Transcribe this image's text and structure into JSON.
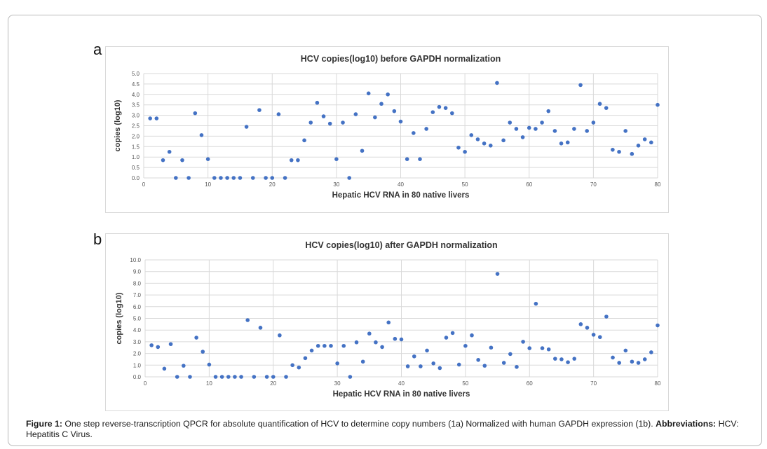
{
  "panels": [
    {
      "letter": "a"
    },
    {
      "letter": "b"
    }
  ],
  "caption": {
    "label": "Figure 1:",
    "text": " One step reverse-transcription QPCR for absolute quantification of HCV to determine copy numbers (1a) Normalized with human GAPDH expression (1b). ",
    "abbr_label": "Abbreviations:",
    "abbr_text": " HCV: Hepatitis C Virus."
  },
  "chart_data": [
    {
      "type": "scatter",
      "title": "HCV copies(log10) before GAPDH normalization",
      "xlabel": "Hepatic HCV  RNA in 80 native livers",
      "ylabel": "copies (log10)",
      "xlim": [
        0,
        80
      ],
      "ylim": [
        0,
        5
      ],
      "xticks": [
        0,
        10,
        20,
        30,
        40,
        50,
        60,
        70,
        80
      ],
      "yticks": [
        "0.0",
        "0.5",
        "1.0",
        "1.5",
        "2.0",
        "2.5",
        "3.0",
        "3.5",
        "4.0",
        "4.5",
        "5.0"
      ],
      "grid": "horizontal",
      "marker_color": "#4472c4",
      "x": [
        1,
        2,
        3,
        4,
        5,
        6,
        7,
        8,
        9,
        10,
        11,
        12,
        13,
        14,
        15,
        16,
        17,
        18,
        19,
        20,
        21,
        22,
        23,
        24,
        25,
        26,
        27,
        28,
        29,
        30,
        31,
        32,
        33,
        34,
        35,
        36,
        37,
        38,
        39,
        40,
        41,
        42,
        43,
        44,
        45,
        46,
        47,
        48,
        49,
        50,
        51,
        52,
        53,
        54,
        55,
        56,
        57,
        58,
        59,
        60,
        61,
        62,
        63,
        64,
        65,
        66,
        67,
        68,
        69,
        70,
        71,
        72,
        73,
        74,
        75,
        76,
        77,
        78,
        79,
        80
      ],
      "y": [
        2.85,
        2.85,
        0.85,
        1.25,
        0,
        0.85,
        0,
        3.1,
        2.05,
        0.9,
        0,
        0,
        0,
        0,
        0,
        2.45,
        0,
        3.25,
        0,
        0,
        3.05,
        0,
        0.85,
        0.85,
        1.8,
        2.65,
        3.6,
        2.95,
        2.6,
        0.9,
        2.65,
        0,
        3.05,
        1.3,
        4.05,
        2.9,
        3.55,
        4.0,
        3.2,
        2.7,
        0.9,
        2.15,
        0.9,
        2.35,
        3.15,
        3.4,
        3.35,
        3.1,
        1.45,
        1.25,
        2.05,
        1.85,
        1.65,
        1.55,
        4.55,
        1.8,
        2.65,
        2.35,
        1.95,
        2.4,
        2.35,
        2.65,
        3.2,
        2.25,
        1.65,
        1.7,
        2.35,
        4.45,
        2.25,
        2.65,
        3.55,
        3.35,
        1.35,
        1.25,
        2.25,
        1.15,
        1.55,
        1.85,
        1.7,
        3.5
      ]
    },
    {
      "type": "scatter",
      "title": "HCV copies(log10) after GAPDH normalization",
      "xlabel": "Hepatic HCV  RNA in 80 native livers",
      "ylabel": "copies (log10)",
      "xlim": [
        0,
        80
      ],
      "ylim": [
        0,
        10
      ],
      "xticks": [
        0,
        10,
        20,
        30,
        40,
        50,
        60,
        70,
        80
      ],
      "yticks": [
        "0.0",
        "1.0",
        "2.0",
        "3.0",
        "4.0",
        "5.0",
        "6.0",
        "7.0",
        "8.0",
        "9.0",
        "10.0"
      ],
      "grid": "horizontal",
      "marker_color": "#4472c4",
      "x": [
        1,
        2,
        3,
        4,
        5,
        6,
        7,
        8,
        9,
        10,
        11,
        12,
        13,
        14,
        15,
        16,
        17,
        18,
        19,
        20,
        21,
        22,
        23,
        24,
        25,
        26,
        27,
        28,
        29,
        30,
        31,
        32,
        33,
        34,
        35,
        36,
        37,
        38,
        39,
        40,
        41,
        42,
        43,
        44,
        45,
        46,
        47,
        48,
        49,
        50,
        51,
        52,
        53,
        54,
        55,
        56,
        57,
        58,
        59,
        60,
        61,
        62,
        63,
        64,
        65,
        66,
        67,
        68,
        69,
        70,
        71,
        72,
        73,
        74,
        75,
        76,
        77,
        78,
        79,
        80
      ],
      "y": [
        2.7,
        2.55,
        0.7,
        2.8,
        0,
        0.95,
        0,
        3.35,
        2.15,
        1.05,
        0,
        0,
        0,
        0,
        0,
        4.85,
        0,
        4.2,
        0,
        0,
        3.55,
        0,
        1.0,
        0.8,
        1.6,
        2.25,
        2.65,
        2.65,
        2.65,
        1.15,
        2.65,
        0,
        2.95,
        1.3,
        3.7,
        2.95,
        2.55,
        4.65,
        3.25,
        3.2,
        0.9,
        1.75,
        0.9,
        2.25,
        1.15,
        0.75,
        3.35,
        3.75,
        1.05,
        2.65,
        3.55,
        1.45,
        0.95,
        2.5,
        8.8,
        1.2,
        1.95,
        0.85,
        3.0,
        2.45,
        6.25,
        2.45,
        2.35,
        1.55,
        1.5,
        1.25,
        1.55,
        4.5,
        4.2,
        3.6,
        3.4,
        5.15,
        1.65,
        1.2,
        2.25,
        1.3,
        1.2,
        1.5,
        2.1,
        4.4
      ]
    }
  ]
}
